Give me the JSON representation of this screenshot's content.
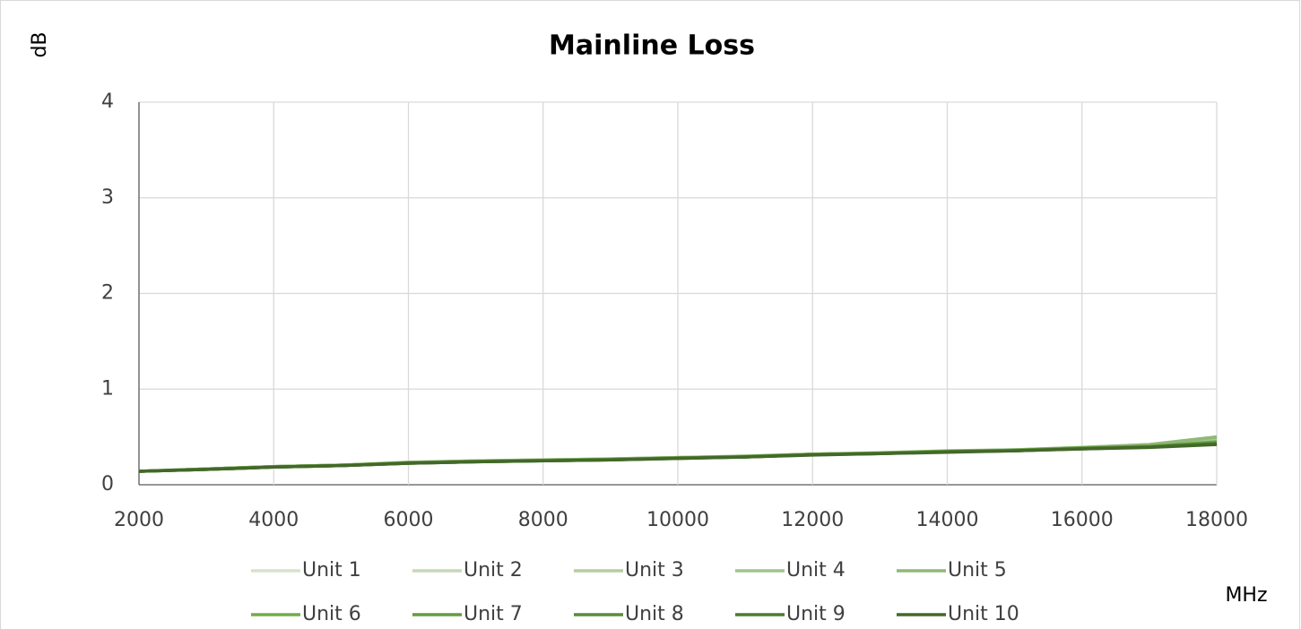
{
  "chart_data": {
    "type": "line",
    "title": "Mainline Loss",
    "ylabel": "dB",
    "xlabel": "MHz",
    "x": [
      2000,
      3000,
      4000,
      5000,
      6000,
      7000,
      8000,
      9000,
      10000,
      11000,
      12000,
      13000,
      14000,
      15000,
      16000,
      17000,
      18000
    ],
    "xlim": [
      2000,
      18000
    ],
    "xticks": [
      2000,
      4000,
      6000,
      8000,
      10000,
      12000,
      14000,
      16000,
      18000
    ],
    "ylim": [
      0,
      4
    ],
    "yticks": [
      0,
      1,
      2,
      3,
      4
    ],
    "grid": true,
    "legend": "bottom",
    "series": [
      {
        "name": "Unit 1",
        "color": "#d5e3cc",
        "values": [
          0.14,
          0.165,
          0.19,
          0.205,
          0.23,
          0.25,
          0.26,
          0.27,
          0.285,
          0.295,
          0.32,
          0.33,
          0.35,
          0.365,
          0.39,
          0.42,
          0.5
        ]
      },
      {
        "name": "Unit 2",
        "color": "#c5d9b8",
        "values": [
          0.14,
          0.165,
          0.19,
          0.205,
          0.23,
          0.25,
          0.26,
          0.27,
          0.285,
          0.295,
          0.32,
          0.33,
          0.35,
          0.365,
          0.39,
          0.42,
          0.49
        ]
      },
      {
        "name": "Unit 3",
        "color": "#b3cea2",
        "values": [
          0.14,
          0.165,
          0.19,
          0.205,
          0.23,
          0.245,
          0.255,
          0.265,
          0.28,
          0.295,
          0.32,
          0.33,
          0.35,
          0.36,
          0.385,
          0.41,
          0.48
        ]
      },
      {
        "name": "Unit 4",
        "color": "#a2c38d",
        "values": [
          0.14,
          0.165,
          0.19,
          0.205,
          0.23,
          0.245,
          0.255,
          0.265,
          0.28,
          0.295,
          0.32,
          0.33,
          0.35,
          0.36,
          0.385,
          0.41,
          0.49
        ]
      },
      {
        "name": "Unit 5",
        "color": "#8fb877",
        "values": [
          0.14,
          0.165,
          0.19,
          0.205,
          0.235,
          0.25,
          0.26,
          0.27,
          0.285,
          0.3,
          0.32,
          0.335,
          0.355,
          0.365,
          0.39,
          0.42,
          0.5
        ]
      },
      {
        "name": "Unit 6",
        "color": "#70ad47",
        "values": [
          0.14,
          0.165,
          0.19,
          0.205,
          0.23,
          0.245,
          0.255,
          0.265,
          0.28,
          0.295,
          0.32,
          0.33,
          0.35,
          0.36,
          0.385,
          0.4,
          0.45
        ]
      },
      {
        "name": "Unit 7",
        "color": "#649c3f",
        "values": [
          0.14,
          0.16,
          0.185,
          0.2,
          0.23,
          0.245,
          0.255,
          0.265,
          0.28,
          0.29,
          0.315,
          0.33,
          0.345,
          0.36,
          0.38,
          0.4,
          0.44
        ]
      },
      {
        "name": "Unit 8",
        "color": "#5a8c39",
        "values": [
          0.14,
          0.16,
          0.185,
          0.2,
          0.225,
          0.24,
          0.25,
          0.26,
          0.28,
          0.29,
          0.315,
          0.325,
          0.345,
          0.355,
          0.38,
          0.395,
          0.43
        ]
      },
      {
        "name": "Unit 9",
        "color": "#4e7a31",
        "values": [
          0.14,
          0.16,
          0.185,
          0.2,
          0.225,
          0.24,
          0.25,
          0.26,
          0.275,
          0.29,
          0.315,
          0.325,
          0.345,
          0.355,
          0.375,
          0.395,
          0.43
        ]
      },
      {
        "name": "Unit 10",
        "color": "#43682a",
        "values": [
          0.14,
          0.16,
          0.185,
          0.2,
          0.225,
          0.24,
          0.25,
          0.26,
          0.275,
          0.29,
          0.31,
          0.325,
          0.34,
          0.355,
          0.375,
          0.39,
          0.42
        ]
      }
    ]
  }
}
